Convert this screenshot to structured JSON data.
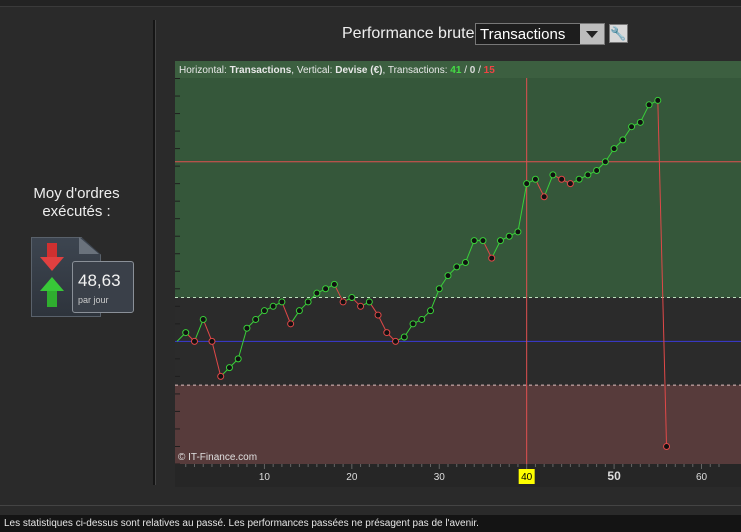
{
  "metric": {
    "label_line1": "Moy d'ordres",
    "label_line2": "exécutés :",
    "value": "48,63",
    "unit": "par jour",
    "icons": [
      "arrow-down-icon",
      "arrow-up-icon",
      "document-icon"
    ]
  },
  "header": {
    "title": "Performance brute",
    "select_value": "Transactions",
    "settings_icon": "wrench-icon"
  },
  "legend": {
    "horizontal_label": "Horizontal:",
    "horizontal_value": "Transactions",
    "vertical_label": ", Vertical:",
    "vertical_value": "Devise (€)",
    "transactions_label": ", Transactions:",
    "count_green": "41",
    "separator": "/",
    "count_zero": "0",
    "count_red": "15"
  },
  "watermark": "© IT-Finance.com",
  "footer": "Les statistiques ci-dessus sont relatives au passé. Les performances passées ne présagent pas de l'avenir.",
  "colors": {
    "profit_zone": "#35573a",
    "neutral_zone": "#2b2b2b",
    "loss_zone": "#573b3b",
    "up": "#3ad03a",
    "down": "#e04848",
    "baseline": "#3a3ad8",
    "cursor": "#e05050",
    "highlight": "#ffff00"
  },
  "chart_data": {
    "type": "line",
    "xlim": [
      0,
      62
    ],
    "ylim": [
      -28,
      64
    ],
    "x_ticks": [
      10,
      20,
      30,
      40,
      50,
      60
    ],
    "highlighted_x": 40,
    "bold_x": 50,
    "cursor_x": 40,
    "zone_upper": 10,
    "zone_lower": -10,
    "baseline": 0,
    "cursor_hline": 41,
    "points": [
      [
        0,
        0
      ],
      [
        1,
        2
      ],
      [
        2,
        0
      ],
      [
        3,
        5
      ],
      [
        4,
        0
      ],
      [
        5,
        -8
      ],
      [
        6,
        -6
      ],
      [
        7,
        -4
      ],
      [
        8,
        3
      ],
      [
        9,
        5
      ],
      [
        10,
        7
      ],
      [
        11,
        8
      ],
      [
        12,
        9
      ],
      [
        13,
        4
      ],
      [
        14,
        7
      ],
      [
        15,
        9
      ],
      [
        16,
        11
      ],
      [
        17,
        12
      ],
      [
        18,
        13
      ],
      [
        19,
        9
      ],
      [
        20,
        10
      ],
      [
        21,
        8
      ],
      [
        22,
        9
      ],
      [
        23,
        6
      ],
      [
        24,
        2
      ],
      [
        25,
        0
      ],
      [
        26,
        1
      ],
      [
        27,
        4
      ],
      [
        28,
        5
      ],
      [
        29,
        7
      ],
      [
        30,
        12
      ],
      [
        31,
        15
      ],
      [
        32,
        17
      ],
      [
        33,
        18
      ],
      [
        34,
        23
      ],
      [
        35,
        23
      ],
      [
        36,
        19
      ],
      [
        37,
        23
      ],
      [
        38,
        24
      ],
      [
        39,
        25
      ],
      [
        40,
        36
      ],
      [
        41,
        37
      ],
      [
        42,
        33
      ],
      [
        43,
        38
      ],
      [
        44,
        37
      ],
      [
        45,
        36
      ],
      [
        46,
        37
      ],
      [
        47,
        38
      ],
      [
        48,
        39
      ],
      [
        49,
        41
      ],
      [
        50,
        44
      ],
      [
        51,
        46
      ],
      [
        52,
        49
      ],
      [
        53,
        50
      ],
      [
        54,
        54
      ],
      [
        55,
        55
      ],
      [
        56,
        -24
      ]
    ]
  }
}
